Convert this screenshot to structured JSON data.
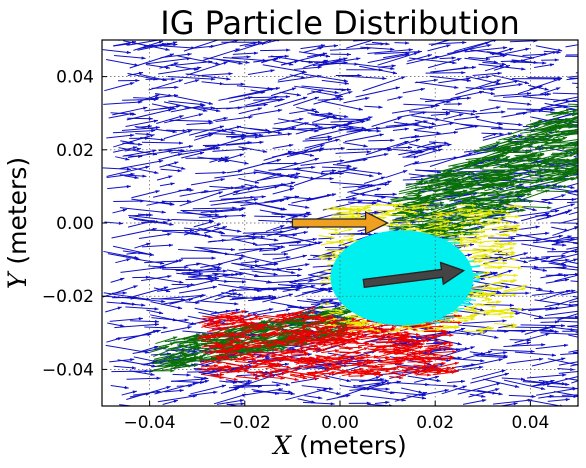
{
  "chart_data": {
    "type": "scatter",
    "subtype": "quiver",
    "title": "IG Particle Distribution",
    "xlabel_var": "X",
    "xlabel_unit": "(meters)",
    "ylabel_var": "Y",
    "ylabel_unit": "(meters)",
    "xlim": [
      -0.05,
      0.05
    ],
    "ylim": [
      -0.05,
      0.05
    ],
    "xticks": [
      -0.04,
      -0.02,
      0.0,
      0.02,
      0.04
    ],
    "xtick_labels": [
      "−0.04",
      "−0.02",
      "0.00",
      "0.02",
      "0.04"
    ],
    "yticks": [
      0.04,
      0.02,
      0.0,
      -0.02,
      -0.04
    ],
    "ytick_labels": [
      "0.04",
      "0.02",
      "0.00",
      "−0.02",
      "−0.04"
    ],
    "grid": true,
    "series_colors": {
      "blue": "#1010c8",
      "green": "#0a700a",
      "red": "#ee0000",
      "yellow": "#e8e800",
      "cyan": "#00f0f0"
    },
    "clusters": [
      {
        "color": "blue",
        "region": "broad field",
        "x_range": [
          -0.05,
          0.05
        ],
        "y_range": [
          -0.05,
          0.05
        ],
        "direction": "right"
      },
      {
        "color": "green",
        "region": "upper right band",
        "x_range": [
          0.01,
          0.05
        ],
        "y_range": [
          -0.005,
          0.03
        ],
        "direction": "right"
      },
      {
        "color": "green",
        "region": "lower left band",
        "x_range": [
          -0.04,
          0.0
        ],
        "y_range": [
          -0.04,
          -0.025
        ],
        "direction": "right"
      },
      {
        "color": "red",
        "region": "lower band",
        "x_range": [
          -0.03,
          0.02
        ],
        "y_range": [
          -0.042,
          -0.025
        ],
        "direction": "right"
      },
      {
        "color": "yellow",
        "region": "ring around beam",
        "x_range": [
          -0.005,
          0.035
        ],
        "y_range": [
          -0.03,
          0.005
        ],
        "direction": "right"
      },
      {
        "color": "cyan",
        "region": "beam spot",
        "center": [
          0.013,
          -0.015
        ],
        "radius_x": 0.015,
        "radius_y": 0.013
      }
    ],
    "annotations": [
      {
        "type": "arrow",
        "color": "#f0a020",
        "from": [
          -0.01,
          0.0
        ],
        "to": [
          0.01,
          0.0
        ]
      },
      {
        "type": "arrow",
        "color": "#444444",
        "from": [
          0.005,
          -0.0165
        ],
        "to": [
          0.026,
          -0.013
        ]
      }
    ]
  }
}
